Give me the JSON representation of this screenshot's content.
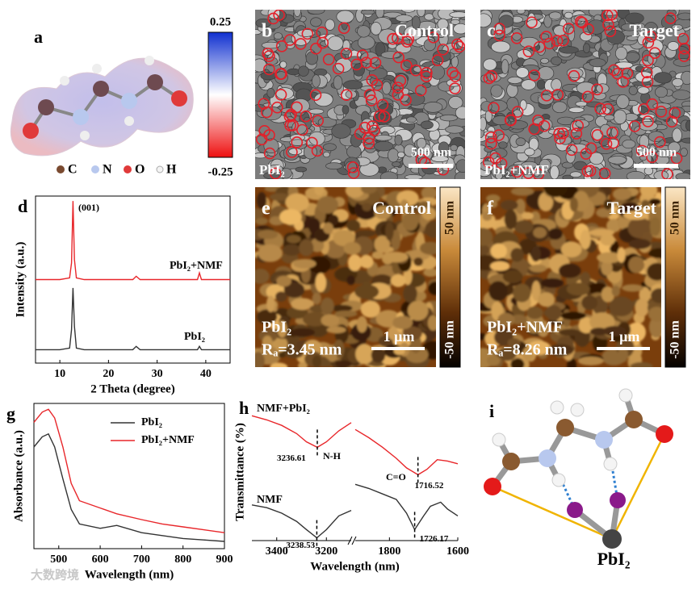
{
  "panels": {
    "a": {
      "label": "a",
      "colorbar": {
        "max": "0.25",
        "min": "-0.25"
      },
      "legend": [
        "C",
        "N",
        "O",
        "H"
      ]
    },
    "b": {
      "label": "b",
      "title": "Control",
      "scale": "500 nm",
      "sample": "PbI₂"
    },
    "c": {
      "label": "c",
      "title": "Target",
      "scale": "500 nm",
      "sample": "PbI₂+NMF"
    },
    "e": {
      "label": "e",
      "title": "Control",
      "sample": "PbI₂",
      "roughness": "Rₐ=3.45 nm",
      "scale": "1 μm",
      "colorbar": {
        "max": "50 nm",
        "min": "-50 nm"
      }
    },
    "f": {
      "label": "f",
      "title": "Target",
      "sample": "PbI₂+NMF",
      "roughness": "Rₐ=8.26 nm",
      "scale": "1 μm",
      "colorbar": {
        "max": "50 nm",
        "min": "-50 nm"
      }
    },
    "i": {
      "label": "i",
      "compound": "PbI₂"
    }
  },
  "chart_data": [
    {
      "label": "d",
      "type": "line",
      "xlabel": "2 Theta (degree)",
      "ylabel": "Intensity (a.u.)",
      "xlim": [
        5,
        45
      ],
      "ylim": [
        0,
        100
      ],
      "xticks": [
        10,
        20,
        30,
        40
      ],
      "legend": "inline",
      "annotations": [
        "(001)"
      ],
      "series": [
        {
          "name": "PbI₂+NMF",
          "color": "#e8262a",
          "x": [
            5,
            10,
            12,
            12.4,
            12.7,
            13,
            13.4,
            15,
            20,
            25,
            25.7,
            26.5,
            30,
            35,
            38.3,
            38.7,
            39.1,
            42,
            45
          ],
          "values": [
            50,
            50,
            51,
            60,
            97,
            62,
            51,
            50,
            50,
            50,
            52,
            50,
            50,
            50,
            50,
            54,
            50,
            50,
            50
          ]
        },
        {
          "name": "PbI₂",
          "color": "#333333",
          "x": [
            5,
            10,
            12,
            12.4,
            12.7,
            13,
            13.4,
            15,
            20,
            25,
            25.7,
            26.5,
            30,
            35,
            38.3,
            38.7,
            39.1,
            42,
            45
          ],
          "values": [
            8,
            8,
            9,
            20,
            45,
            22,
            9,
            8,
            8,
            8,
            10,
            8,
            8,
            8,
            8,
            10,
            8,
            8,
            8
          ]
        }
      ]
    },
    {
      "label": "g",
      "type": "line",
      "xlabel": "Wavelength (nm)",
      "ylabel": "Absorbance (a.u.)",
      "xlim": [
        440,
        900
      ],
      "ylim": [
        0,
        100
      ],
      "xticks": [
        500,
        600,
        700,
        800,
        900
      ],
      "legend": "upper right",
      "series": [
        {
          "name": "PbI₂",
          "color": "#333333",
          "x": [
            440,
            460,
            475,
            490,
            510,
            530,
            550,
            600,
            640,
            700,
            750,
            800,
            850,
            900
          ],
          "values": [
            70,
            77,
            79,
            70,
            48,
            27,
            17,
            14,
            16,
            11,
            9,
            7,
            6,
            5
          ]
        },
        {
          "name": "PbI₂+NMF",
          "color": "#e8262a",
          "x": [
            440,
            460,
            475,
            490,
            510,
            530,
            550,
            600,
            640,
            700,
            750,
            800,
            850,
            900
          ],
          "values": [
            87,
            94,
            96,
            90,
            70,
            45,
            33,
            28,
            24,
            20,
            17,
            15,
            13,
            11
          ]
        }
      ]
    },
    {
      "label": "h",
      "type": "line",
      "xlabel": "Wavelength (nm)",
      "ylabel": "Transmittance (%)",
      "xlim": [
        [
          3500,
          3100
        ],
        [
          1900,
          1600
        ]
      ],
      "ylim": [
        0,
        100
      ],
      "xticks": [
        3400,
        3200,
        1800,
        1600
      ],
      "legend": "inline",
      "annotations": [
        "N-H",
        "C=O"
      ],
      "series": [
        {
          "name": "NMF+PbI₂",
          "color": "#e8262a",
          "peaks": [
            3236.61,
            1716.52
          ],
          "x": [
            3500,
            3440,
            3380,
            3320,
            3280,
            3236.61,
            3200,
            3150,
            3100,
            1900,
            1860,
            1820,
            1780,
            1750,
            1716.52,
            1690,
            1660,
            1630,
            1600
          ],
          "values": [
            91,
            88,
            84,
            78,
            72,
            68,
            72,
            80,
            86,
            81,
            75,
            68,
            60,
            53,
            48,
            52,
            59,
            58,
            56
          ]
        },
        {
          "name": "NMF",
          "color": "#333333",
          "peaks": [
            3238.53,
            1726.17
          ],
          "x": [
            3500,
            3440,
            3380,
            3320,
            3280,
            3238.53,
            3200,
            3150,
            3100,
            1900,
            1860,
            1820,
            1780,
            1750,
            1726.17,
            1700,
            1680,
            1650,
            1630,
            1600
          ],
          "values": [
            26,
            24,
            20,
            14,
            8,
            2,
            8,
            18,
            22,
            41,
            38,
            34,
            30,
            20,
            8,
            18,
            25,
            28,
            23,
            18
          ]
        }
      ]
    }
  ],
  "watermark": "大数跨境"
}
